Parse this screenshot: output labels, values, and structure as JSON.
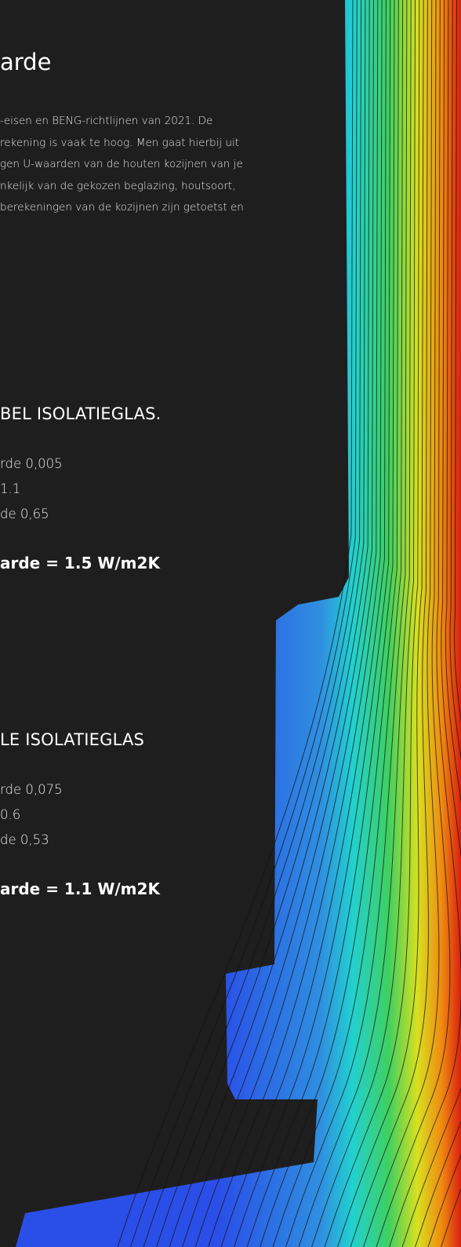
{
  "title": "arde",
  "paragraph": [
    "-eisen en BENG-richtlijnen van 2021. De",
    "rekening is  vaak te hoog. Men gaat hierbij uit",
    "gen U-waarden van de houten kozijnen van je",
    "nkelijk van de gekozen beglazing, houtsoort,",
    "berekeningen van de kozijnen zijn getoetst en"
  ],
  "sections": [
    {
      "heading": "BEL ISOLATIEGLAS.",
      "items": [
        "rde 0,005",
        "1.1",
        "de 0,65"
      ],
      "result": "arde = 1.5 W/m2K"
    },
    {
      "heading": "LE ISOLATIEGLAS",
      "items": [
        "rde 0,075",
        "0.6",
        "de 0,53"
      ],
      "result": "arde = 1.1 W/m2K"
    }
  ]
}
